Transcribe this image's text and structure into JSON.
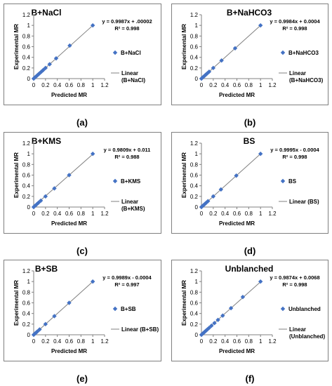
{
  "chart_data": [
    {
      "type": "scatter",
      "caption": "(a)",
      "title": "B+NaCl",
      "equation": "y = 0.9987x + .00002",
      "r2": "R² = 0.998",
      "xlabel": "Predicted MR",
      "ylabel": "Experimental MR",
      "xlim": [
        0,
        1.2
      ],
      "ylim": [
        0,
        1.2
      ],
      "xticks": [
        "0",
        "0.2",
        "0.4",
        "0.6",
        "0.8",
        "1",
        "1.2"
      ],
      "yticks": [
        "0",
        "0.2",
        "0.4",
        "0.6",
        "0.8",
        "1",
        "1.2"
      ],
      "legend": {
        "marker": "B+NaCl",
        "line": [
          "Linear",
          "(B+NaCl)"
        ]
      },
      "line": {
        "slope": 0.9987,
        "intercept": 2e-05
      },
      "points": [
        [
          0,
          0
        ],
        [
          0.02,
          0.02
        ],
        [
          0.04,
          0.04
        ],
        [
          0.06,
          0.06
        ],
        [
          0.08,
          0.08
        ],
        [
          0.1,
          0.1
        ],
        [
          0.13,
          0.13
        ],
        [
          0.16,
          0.16
        ],
        [
          0.2,
          0.2
        ],
        [
          0.27,
          0.27
        ],
        [
          0.38,
          0.38
        ],
        [
          0.61,
          0.62
        ],
        [
          1,
          1
        ]
      ]
    },
    {
      "type": "scatter",
      "caption": "(b)",
      "title": "B+NaHCO3",
      "equation": "y = 0.9984x + 0.0004",
      "r2": "R² = 0.998",
      "xlabel": "Predicted MR",
      "ylabel": "Experimental MR",
      "xlim": [
        0,
        1.2
      ],
      "ylim": [
        0,
        1.2
      ],
      "xticks": [
        "0",
        "0.2",
        "0.4",
        "0.6",
        "0.8",
        "1",
        "1.2"
      ],
      "yticks": [
        "0",
        "0.2",
        "0.4",
        "0.6",
        "0.8",
        "1",
        "1.2"
      ],
      "legend": {
        "marker": "B+NaHCO3",
        "line": [
          "Linear",
          "(B+NaHCO3)"
        ]
      },
      "line": {
        "slope": 0.9984,
        "intercept": 0.0004
      },
      "points": [
        [
          0,
          0
        ],
        [
          0.02,
          0.02
        ],
        [
          0.04,
          0.04
        ],
        [
          0.06,
          0.06
        ],
        [
          0.08,
          0.08
        ],
        [
          0.1,
          0.1
        ],
        [
          0.13,
          0.13
        ],
        [
          0.2,
          0.2
        ],
        [
          0.34,
          0.34
        ],
        [
          0.57,
          0.57
        ],
        [
          1,
          1
        ]
      ]
    },
    {
      "type": "scatter",
      "caption": "(c)",
      "title": "B+KMS",
      "equation": "y = 0.9809x + 0.011",
      "r2": "R² = 0.988",
      "xlabel": "Predicted MR",
      "ylabel": "Experimental MR",
      "xlim": [
        0,
        1.2
      ],
      "ylim": [
        0,
        1.2
      ],
      "xticks": [
        "0",
        "0.2",
        "0.4",
        "0.6",
        "0.8",
        "1",
        "1.2"
      ],
      "yticks": [
        "0",
        "0.2",
        "0.4",
        "0.6",
        "0.8",
        "1",
        "1.2"
      ],
      "legend": {
        "marker": "B+KMS",
        "line": [
          "Linear",
          "(B+KMS)"
        ]
      },
      "line": {
        "slope": 0.9809,
        "intercept": 0.011
      },
      "points": [
        [
          0,
          0
        ],
        [
          0.02,
          0.02
        ],
        [
          0.05,
          0.05
        ],
        [
          0.08,
          0.08
        ],
        [
          0.12,
          0.12
        ],
        [
          0.2,
          0.2
        ],
        [
          0.35,
          0.35
        ],
        [
          0.6,
          0.6
        ],
        [
          1,
          1
        ]
      ]
    },
    {
      "type": "scatter",
      "caption": "(d)",
      "title": "BS",
      "equation": "y = 0.9995x - 0.0004",
      "r2": "R² = 0.998",
      "xlabel": "Predicted MR",
      "ylabel": "Experimental MR",
      "xlim": [
        0,
        1.2
      ],
      "ylim": [
        0,
        1.2
      ],
      "xticks": [
        "0",
        "0.2",
        "0.4",
        "0.6",
        "0.8",
        "1",
        "1.2"
      ],
      "yticks": [
        "0",
        "0.2",
        "0.4",
        "0.6",
        "0.8",
        "1",
        "1.2"
      ],
      "legend": {
        "marker": "BS",
        "line": [
          "Linear (BS)"
        ]
      },
      "line": {
        "slope": 0.9995,
        "intercept": -0.0004
      },
      "points": [
        [
          0,
          0
        ],
        [
          0.02,
          0.02
        ],
        [
          0.04,
          0.04
        ],
        [
          0.06,
          0.06
        ],
        [
          0.08,
          0.08
        ],
        [
          0.11,
          0.11
        ],
        [
          0.2,
          0.2
        ],
        [
          0.33,
          0.33
        ],
        [
          0.59,
          0.59
        ],
        [
          1,
          1
        ]
      ]
    },
    {
      "type": "scatter",
      "caption": "(e)",
      "title": "B+SB",
      "equation": "y = 0.9989x - 0.0004",
      "r2": "R² = 0.997",
      "xlabel": "Predicted MR",
      "ylabel": "Experimental MR",
      "xlim": [
        0,
        1.2
      ],
      "ylim": [
        0,
        1.2
      ],
      "xticks": [
        "0",
        "0.2",
        "0.4",
        "0.6",
        "0.8",
        "1",
        "1.2"
      ],
      "yticks": [
        "0",
        "0.2",
        "0.4",
        "0.6",
        "0.8",
        "1",
        "1.2"
      ],
      "legend": {
        "marker": "B+SB",
        "line": [
          "Linear (B+SB)"
        ]
      },
      "line": {
        "slope": 0.9989,
        "intercept": -0.0004
      },
      "points": [
        [
          0,
          0
        ],
        [
          0.02,
          0.02
        ],
        [
          0.04,
          0.04
        ],
        [
          0.06,
          0.06
        ],
        [
          0.1,
          0.1
        ],
        [
          0.2,
          0.2
        ],
        [
          0.35,
          0.35
        ],
        [
          0.6,
          0.6
        ],
        [
          1,
          1
        ]
      ]
    },
    {
      "type": "scatter",
      "caption": "(f)",
      "title": "Unblanched",
      "equation": "y = 0.9874x + 0.0068",
      "r2": "R² = 0.998",
      "xlabel": "Predicted MR",
      "ylabel": "Experimental MR",
      "xlim": [
        0,
        1.2
      ],
      "ylim": [
        0,
        1.2
      ],
      "xticks": [
        "0",
        "0.2",
        "0.4",
        "0.6",
        "0.8",
        "1",
        "1.2"
      ],
      "yticks": [
        "0",
        "0.2",
        "0.4",
        "0.6",
        "0.8",
        "1",
        "1.2"
      ],
      "legend": {
        "marker": "Unblanched",
        "line": [
          "Linear",
          "(Unblanched)"
        ]
      },
      "line": {
        "slope": 0.9874,
        "intercept": 0.0068
      },
      "points": [
        [
          0,
          0
        ],
        [
          0.02,
          0.02
        ],
        [
          0.04,
          0.04
        ],
        [
          0.06,
          0.06
        ],
        [
          0.08,
          0.08
        ],
        [
          0.1,
          0.1
        ],
        [
          0.13,
          0.13
        ],
        [
          0.17,
          0.17
        ],
        [
          0.22,
          0.22
        ],
        [
          0.28,
          0.28
        ],
        [
          0.36,
          0.36
        ],
        [
          0.5,
          0.5
        ],
        [
          0.7,
          0.71
        ],
        [
          1,
          1
        ]
      ]
    }
  ]
}
